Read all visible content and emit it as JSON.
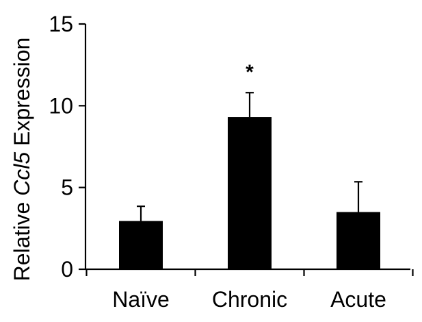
{
  "chart_data": {
    "type": "bar",
    "categories": [
      "Naïve",
      "Chronic",
      "Acute"
    ],
    "values": [
      2.95,
      9.3,
      3.5
    ],
    "error_upper": [
      0.9,
      1.5,
      1.85
    ],
    "annotations": [
      "",
      "*",
      ""
    ],
    "ylabel_parts": {
      "prefix": "Relative ",
      "gene": "Ccl5",
      "suffix": " Expression"
    },
    "xlabel": "",
    "title": "",
    "ylim": [
      0,
      15
    ],
    "yticks": [
      "0",
      "5",
      "10",
      "15"
    ],
    "grid": false,
    "legend": "none",
    "bar_color": "#000000"
  }
}
